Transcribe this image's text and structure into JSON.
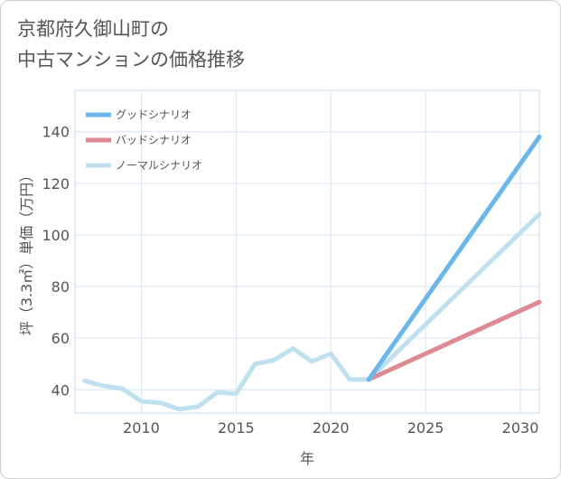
{
  "header": {
    "title_line1": "京都府久御山町の",
    "title_line2": "中古マンションの価格推移"
  },
  "chart_data": {
    "type": "line",
    "title": "京都府久御山町の中古マンションの価格推移",
    "xlabel": "年",
    "ylabel": "坪（3.3㎡）単価（万円）",
    "xlim": [
      2006.5,
      2031
    ],
    "ylim": [
      31,
      156
    ],
    "x_ticks": [
      2010,
      2015,
      2020,
      2025,
      2030
    ],
    "y_ticks": [
      40,
      60,
      80,
      100,
      120,
      140
    ],
    "grid": true,
    "legend_position": "top-left",
    "series": [
      {
        "name": "グッドシナリオ",
        "color": "#6cb7ea",
        "x": [
          2022,
          2031
        ],
        "y": [
          44,
          138
        ]
      },
      {
        "name": "バッドシナリオ",
        "color": "#dd8a94",
        "x": [
          2022,
          2031
        ],
        "y": [
          44,
          74
        ]
      },
      {
        "name": "ノーマルシナリオ",
        "color": "#bfe0ef",
        "x": [
          2007,
          2008,
          2009,
          2010,
          2011,
          2012,
          2013,
          2014,
          2015,
          2016,
          2017,
          2018,
          2019,
          2020,
          2021,
          2022,
          2031
        ],
        "y": [
          43.5,
          41.5,
          40.5,
          35.5,
          35,
          32.5,
          33.5,
          39,
          38.5,
          50,
          51.5,
          56,
          51,
          54,
          44,
          44,
          108
        ]
      }
    ]
  }
}
